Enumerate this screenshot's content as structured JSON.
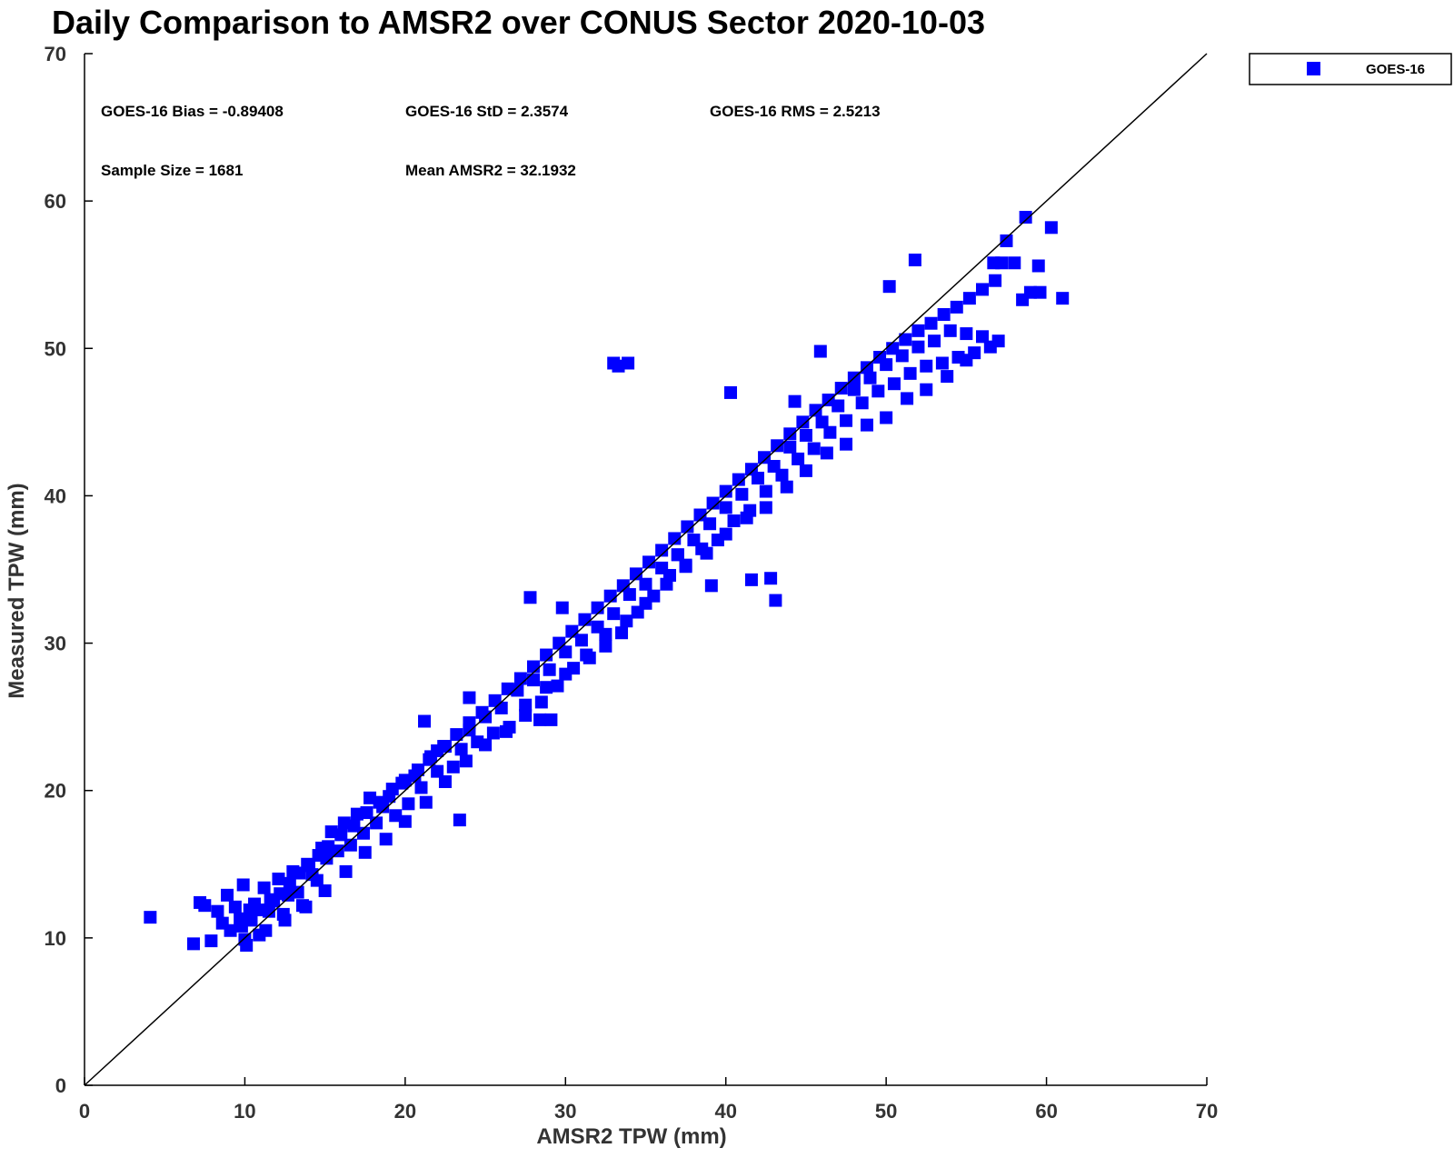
{
  "chart_data": {
    "type": "scatter",
    "title": "Daily Comparison to AMSR2 over CONUS Sector 2020-10-03",
    "xlabel": "AMSR2 TPW (mm)",
    "ylabel": "Measured TPW (mm)",
    "xlim": [
      0,
      70
    ],
    "ylim": [
      0,
      70
    ],
    "xticks": [
      "0",
      "10",
      "20",
      "30",
      "40",
      "50",
      "60",
      "70"
    ],
    "yticks": [
      "0",
      "10",
      "20",
      "30",
      "40",
      "50",
      "60",
      "70"
    ],
    "grid": false,
    "legend_position": "outside-top-right",
    "stats": {
      "bias": "GOES-16 Bias = -0.89408",
      "std": "GOES-16 StD = 2.3574",
      "rms": "GOES-16 RMS = 2.5213",
      "sample_size": "Sample Size = 1681",
      "mean": "Mean AMSR2 = 32.1932"
    },
    "reference_line": {
      "name": "1:1 line",
      "x": [
        0,
        70
      ],
      "y": [
        0,
        70
      ],
      "color": "#000000"
    },
    "series": [
      {
        "name": "GOES-16",
        "color": "#0000ff",
        "marker": "square",
        "sample_size": 1681,
        "bias": -0.89408,
        "std": 2.3574,
        "rms": 2.5213,
        "x": [
          4.1,
          6.8,
          7.2,
          7.5,
          7.9,
          8.3,
          8.6,
          8.9,
          9.1,
          9.4,
          9.7,
          9.9,
          10.1,
          10.3,
          10.6,
          10.9,
          11.2,
          11.5,
          11.8,
          12.1,
          12.4,
          12.7,
          13.0,
          13.3,
          13.6,
          13.9,
          14.2,
          14.5,
          14.8,
          15.1,
          15.4,
          15.8,
          16.2,
          16.6,
          17.0,
          17.4,
          17.8,
          18.2,
          18.6,
          19.0,
          19.4,
          19.8,
          20.2,
          20.6,
          21.0,
          21.5,
          22.0,
          22.5,
          23.0,
          23.5,
          24.0,
          24.5,
          25.0,
          25.5,
          26.0,
          26.5,
          27.0,
          27.5,
          28.0,
          28.5,
          29.0,
          29.5,
          30.0,
          30.5,
          31.0,
          31.5,
          32.0,
          32.5,
          33.0,
          33.5,
          34.0,
          34.5,
          35.0,
          35.5,
          36.0,
          36.5,
          37.0,
          37.5,
          38.0,
          38.5,
          39.0,
          39.5,
          40.0,
          40.5,
          41.0,
          41.5,
          42.0,
          42.5,
          43.0,
          43.5,
          44.0,
          44.5,
          45.0,
          45.5,
          46.0,
          46.5,
          47.0,
          47.5,
          48.0,
          48.5,
          49.0,
          49.5,
          50.0,
          50.5,
          51.0,
          51.5,
          52.0,
          52.5,
          53.0,
          53.5,
          54.0,
          54.5,
          55.0,
          55.5,
          56.0,
          56.5,
          57.0,
          57.5,
          58.0,
          58.5,
          59.0,
          60.3,
          61.0,
          9.8,
          10.4,
          11.0,
          11.6,
          12.2,
          12.8,
          13.4,
          14.0,
          14.6,
          15.2,
          16.0,
          16.8,
          17.6,
          18.4,
          19.2,
          20.0,
          20.8,
          21.6,
          22.4,
          23.2,
          24.0,
          24.8,
          25.6,
          26.4,
          27.2,
          28.0,
          28.8,
          29.6,
          30.4,
          31.2,
          32.0,
          32.8,
          33.6,
          34.4,
          35.2,
          36.0,
          36.8,
          37.6,
          38.4,
          39.2,
          40.0,
          40.8,
          41.6,
          42.4,
          43.2,
          44.0,
          44.8,
          45.6,
          46.4,
          47.2,
          48.0,
          48.8,
          49.6,
          50.4,
          51.2,
          52.0,
          52.8,
          53.6,
          54.4,
          55.2,
          56.0,
          56.8,
          10.0,
          11.3,
          12.5,
          13.8,
          15.0,
          16.3,
          17.5,
          18.8,
          20.0,
          21.3,
          22.5,
          23.8,
          25.0,
          26.3,
          27.5,
          28.8,
          30.0,
          31.3,
          32.5,
          33.8,
          35.0,
          36.3,
          37.5,
          38.8,
          40.0,
          41.3,
          42.5,
          43.8,
          45.0,
          46.3,
          47.5,
          48.8,
          50.0,
          51.3,
          52.5,
          53.8,
          55.0,
          33.0,
          33.3,
          33.9,
          39.1,
          41.6,
          44.3,
          37.0,
          40.3,
          42.8,
          43.1,
          58.7,
          59.5,
          59.6,
          57.2,
          56.7,
          51.8,
          50.2,
          45.9,
          27.8,
          28.4,
          29.8,
          24.0,
          21.2,
          23.4,
          22.0,
          29.1
        ],
        "y": [
          11.4,
          9.6,
          12.4,
          12.2,
          9.8,
          11.8,
          11.0,
          12.9,
          10.5,
          12.1,
          11.3,
          13.6,
          9.5,
          11.9,
          12.3,
          10.2,
          13.4,
          11.8,
          12.5,
          14.0,
          11.6,
          12.9,
          14.5,
          13.1,
          12.2,
          15.0,
          14.3,
          13.9,
          16.1,
          15.4,
          17.2,
          15.9,
          17.8,
          16.3,
          18.4,
          17.1,
          19.5,
          17.8,
          18.9,
          19.6,
          18.3,
          20.5,
          19.1,
          21.0,
          20.2,
          22.1,
          21.3,
          23.0,
          21.6,
          22.8,
          24.1,
          23.3,
          25.0,
          23.9,
          25.6,
          24.3,
          26.8,
          25.1,
          27.5,
          26.0,
          28.2,
          27.1,
          29.4,
          28.3,
          30.2,
          29.0,
          31.1,
          29.8,
          32.0,
          30.7,
          33.3,
          32.1,
          34.0,
          33.2,
          35.1,
          34.6,
          36.0,
          35.3,
          37.0,
          36.4,
          38.1,
          37.0,
          39.2,
          38.3,
          40.1,
          39.0,
          41.2,
          40.3,
          42.0,
          41.4,
          43.3,
          42.5,
          44.1,
          43.2,
          45.0,
          44.3,
          46.1,
          45.1,
          47.2,
          46.3,
          48.0,
          47.1,
          48.9,
          47.6,
          49.5,
          48.3,
          50.1,
          48.8,
          50.5,
          49.0,
          51.2,
          49.4,
          51.0,
          49.7,
          50.8,
          50.1,
          50.5,
          57.3,
          55.8,
          53.3,
          53.8,
          58.2,
          53.4,
          10.8,
          11.2,
          11.9,
          12.6,
          13.0,
          13.7,
          14.4,
          14.9,
          15.6,
          16.2,
          17.0,
          17.6,
          18.5,
          19.2,
          20.1,
          20.7,
          21.4,
          22.3,
          23.0,
          23.8,
          24.6,
          25.3,
          26.1,
          26.9,
          27.6,
          28.4,
          29.2,
          30.0,
          30.8,
          31.6,
          32.4,
          33.2,
          33.9,
          34.7,
          35.5,
          36.3,
          37.1,
          37.9,
          38.7,
          39.5,
          40.3,
          41.1,
          41.8,
          42.6,
          43.4,
          44.2,
          45.0,
          45.8,
          46.5,
          47.3,
          48.0,
          48.7,
          49.4,
          50.0,
          50.6,
          51.2,
          51.7,
          52.3,
          52.8,
          53.4,
          54.0,
          54.6,
          9.9,
          10.5,
          11.2,
          12.1,
          13.2,
          14.5,
          15.8,
          16.7,
          17.9,
          19.2,
          20.6,
          22.0,
          23.1,
          24.0,
          25.8,
          27.0,
          27.9,
          29.2,
          30.6,
          31.5,
          32.7,
          34.0,
          35.2,
          36.1,
          37.4,
          38.5,
          39.2,
          40.6,
          41.7,
          42.9,
          43.5,
          44.8,
          45.3,
          46.6,
          47.2,
          48.1,
          49.2,
          49.0,
          48.8,
          49.0,
          33.9,
          34.3,
          46.4,
          36.0,
          47.0,
          34.4,
          32.9,
          58.9,
          55.6,
          53.8,
          55.8,
          55.8,
          56.0,
          54.2,
          49.8,
          33.1,
          24.8,
          32.4,
          26.3,
          24.7,
          18.0,
          22.7,
          24.8
        ]
      }
    ]
  },
  "legend": {
    "label": "GOES-16"
  }
}
